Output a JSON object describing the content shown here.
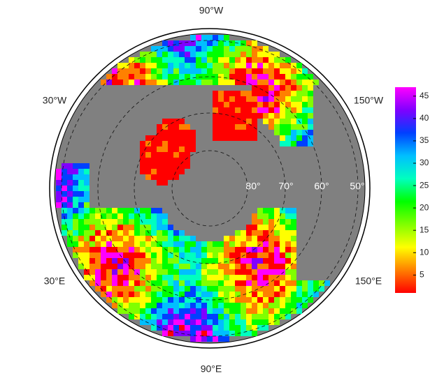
{
  "map": {
    "lon_labels": [
      "90°W",
      "30°W",
      "150°W",
      "30°E",
      "150°E",
      "90°E"
    ],
    "lat_labels": [
      "80°",
      "70°",
      "60°",
      "50°"
    ]
  },
  "colorbar": {
    "lim": [
      1,
      47
    ],
    "ticks": [
      5,
      10,
      15,
      20,
      25,
      30,
      35,
      40,
      45
    ],
    "colors": [
      "#ff0000",
      "#ff8000",
      "#ffff00",
      "#80ff00",
      "#00ff00",
      "#00ffbf",
      "#00bfff",
      "#0040ff",
      "#8000ff",
      "#ff00ff"
    ]
  }
}
